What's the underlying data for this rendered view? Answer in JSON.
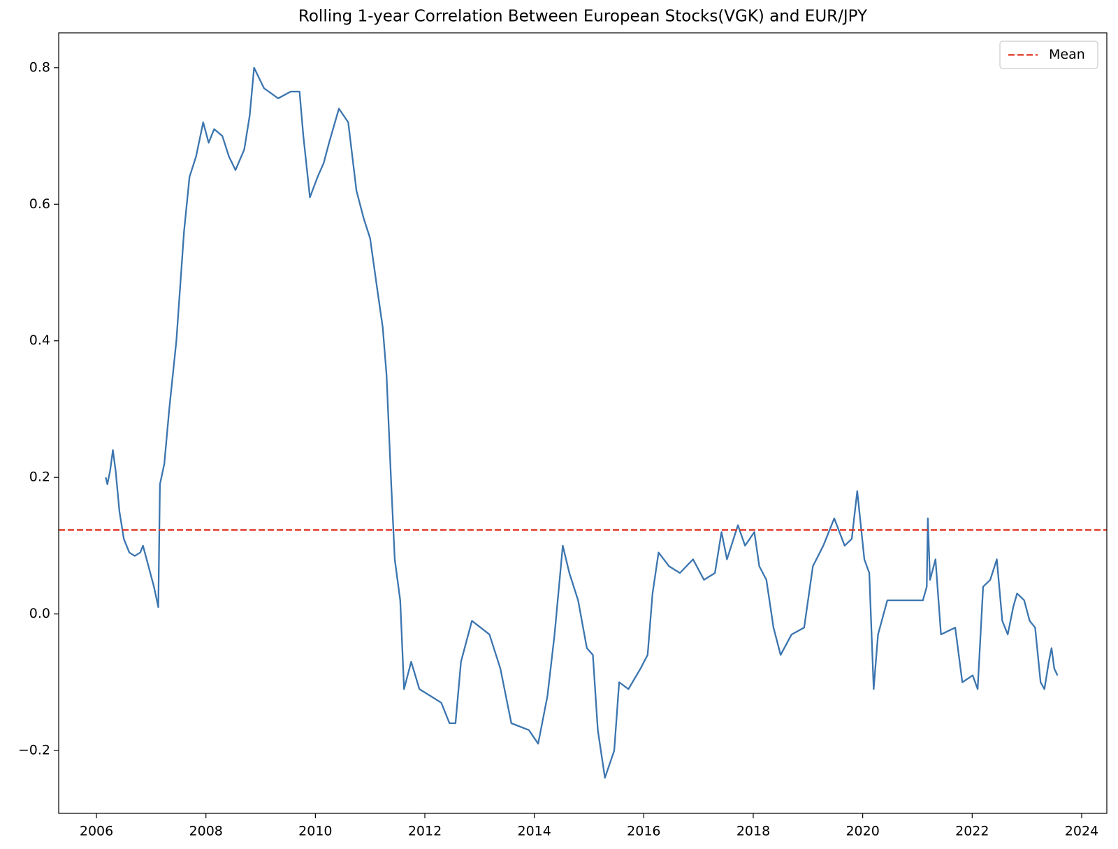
{
  "chart_data": {
    "type": "line",
    "title": "Rolling 1-year Correlation Between European Stocks(VGK) and EUR/JPY",
    "series": [
      {
        "color": "#3b75af",
        "x": [
          2006.17,
          2006.2,
          2006.25,
          2006.3,
          2006.35,
          2006.42,
          2006.5,
          2006.6,
          2006.7,
          2006.8,
          2006.85,
          2006.95,
          2007.05,
          2007.13,
          2007.16,
          2007.24,
          2007.33,
          2007.46,
          2007.6,
          2007.7,
          2007.82,
          2007.95,
          2008.05,
          2008.15,
          2008.3,
          2008.42,
          2008.54,
          2008.7,
          2008.8,
          2008.88,
          2009.06,
          2009.32,
          2009.55,
          2009.71,
          2009.78,
          2009.9,
          2010.04,
          2010.15,
          2010.25,
          2010.43,
          2010.6,
          2010.75,
          2010.88,
          2011.0,
          2011.14,
          2011.23,
          2011.3,
          2011.38,
          2011.45,
          2011.55,
          2011.62,
          2011.75,
          2011.9,
          2012.1,
          2012.3,
          2012.45,
          2012.56,
          2012.66,
          2012.86,
          2013.18,
          2013.38,
          2013.58,
          2013.9,
          2014.07,
          2014.24,
          2014.37,
          2014.52,
          2014.64,
          2014.8,
          2014.96,
          2015.07,
          2015.16,
          2015.29,
          2015.46,
          2015.55,
          2015.72,
          2015.94,
          2016.07,
          2016.16,
          2016.27,
          2016.46,
          2016.66,
          2016.9,
          2017.1,
          2017.3,
          2017.42,
          2017.52,
          2017.72,
          2017.85,
          2018.02,
          2018.11,
          2018.24,
          2018.37,
          2018.5,
          2018.7,
          2018.93,
          2019.09,
          2019.28,
          2019.48,
          2019.67,
          2019.8,
          2019.9,
          2020.03,
          2020.12,
          2020.2,
          2020.28,
          2020.45,
          2020.78,
          2021.1,
          2021.17,
          2021.19,
          2021.23,
          2021.33,
          2021.43,
          2021.69,
          2021.82,
          2022.01,
          2022.1,
          2022.2,
          2022.33,
          2022.45,
          2022.55,
          2022.65,
          2022.75,
          2022.82,
          2022.95,
          2023.05,
          2023.15,
          2023.25,
          2023.32,
          2023.4,
          2023.45,
          2023.5,
          2023.56
        ],
        "values": [
          0.2,
          0.19,
          0.21,
          0.24,
          0.21,
          0.15,
          0.11,
          0.09,
          0.085,
          0.09,
          0.1,
          0.07,
          0.04,
          0.01,
          0.19,
          0.22,
          0.3,
          0.4,
          0.56,
          0.64,
          0.67,
          0.72,
          0.69,
          0.71,
          0.7,
          0.67,
          0.65,
          0.68,
          0.73,
          0.8,
          0.77,
          0.755,
          0.765,
          0.765,
          0.7,
          0.61,
          0.64,
          0.66,
          0.69,
          0.74,
          0.72,
          0.62,
          0.58,
          0.55,
          0.47,
          0.42,
          0.35,
          0.2,
          0.08,
          0.02,
          -0.11,
          -0.07,
          -0.11,
          -0.12,
          -0.13,
          -0.16,
          -0.16,
          -0.07,
          -0.01,
          -0.03,
          -0.08,
          -0.16,
          -0.17,
          -0.19,
          -0.12,
          -0.03,
          0.1,
          0.06,
          0.02,
          -0.05,
          -0.06,
          -0.17,
          -0.24,
          -0.2,
          -0.1,
          -0.11,
          -0.08,
          -0.06,
          0.03,
          0.09,
          0.07,
          0.06,
          0.08,
          0.05,
          0.06,
          0.12,
          0.08,
          0.13,
          0.1,
          0.12,
          0.07,
          0.05,
          -0.02,
          -0.06,
          -0.03,
          -0.02,
          0.07,
          0.1,
          0.14,
          0.1,
          0.11,
          0.18,
          0.08,
          0.06,
          -0.11,
          -0.03,
          0.02,
          0.02,
          0.02,
          0.04,
          0.14,
          0.05,
          0.08,
          -0.03,
          -0.02,
          -0.1,
          -0.09,
          -0.11,
          0.04,
          0.05,
          0.08,
          -0.01,
          -0.03,
          0.01,
          0.03,
          0.02,
          -0.01,
          -0.02,
          -0.1,
          -0.11,
          -0.07,
          -0.05,
          -0.08,
          -0.09
        ]
      }
    ],
    "mean_line": {
      "name": "Mean",
      "value": 0.123,
      "color": "#e0301e"
    },
    "xlim": [
      2005.31,
      2024.46
    ],
    "xticks": [
      2006,
      2008,
      2010,
      2012,
      2014,
      2016,
      2018,
      2020,
      2022,
      2024
    ],
    "ylim": [
      -0.292,
      0.851
    ],
    "yticks": [
      {
        "value": -0.2,
        "label": "−0.2"
      },
      {
        "value": 0,
        "label": "0.0"
      },
      0.2,
      0.4,
      0.6,
      0.8
    ],
    "legend": "upper right"
  }
}
